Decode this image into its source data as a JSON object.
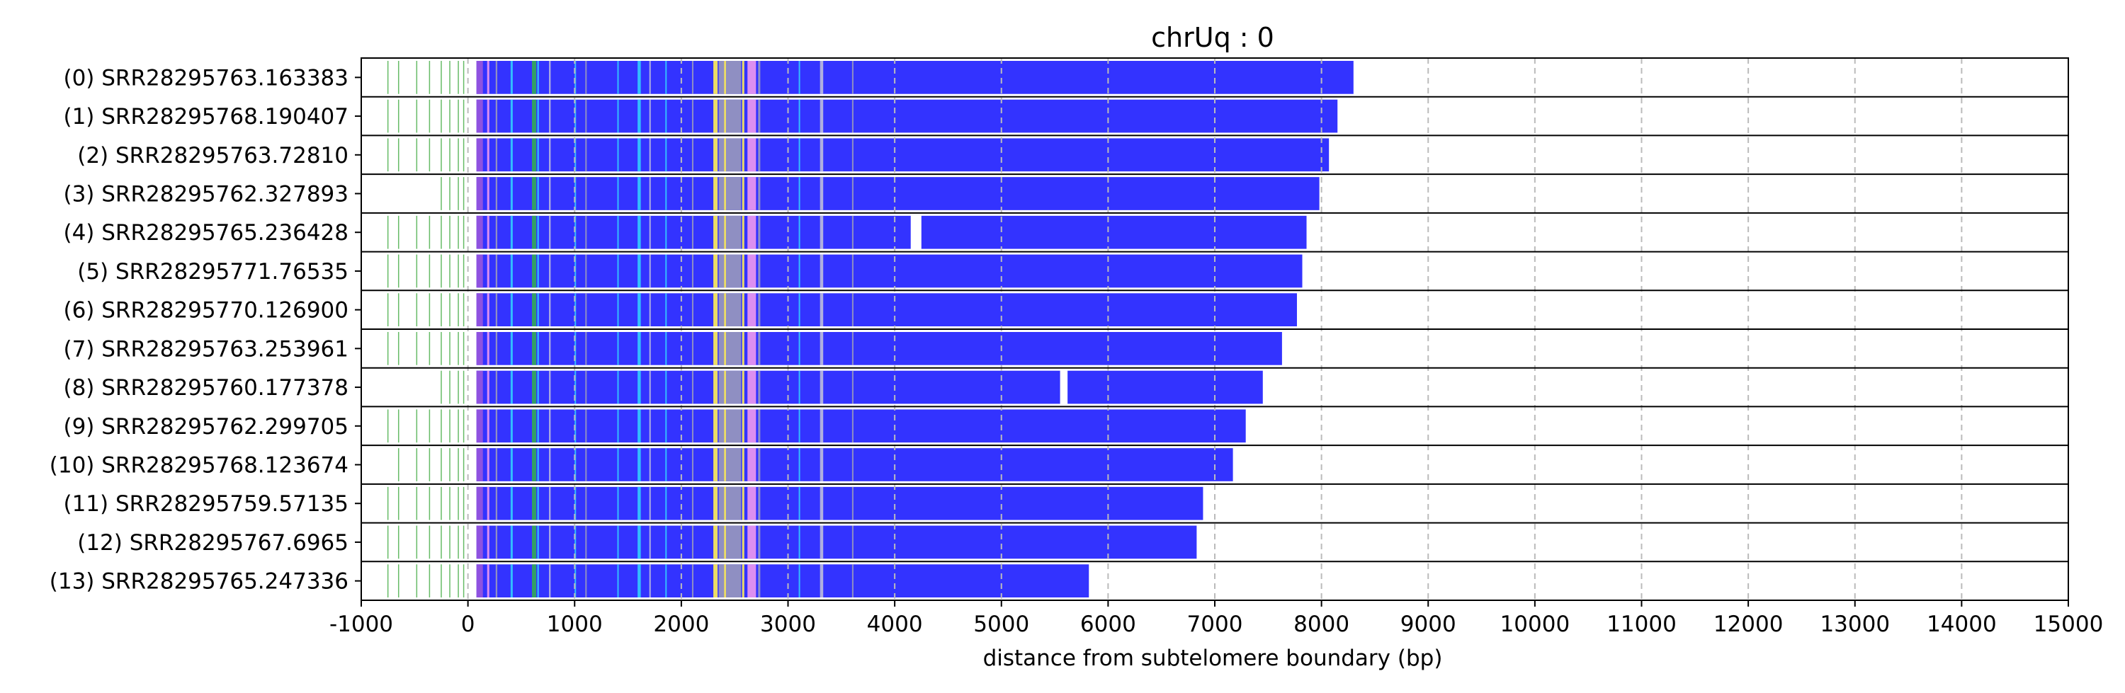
{
  "chart_data": {
    "type": "bar",
    "title": "chrUq : 0",
    "xlabel": "distance from subtelomere boundary (bp)",
    "ylabel": "",
    "xlim": [
      -1000,
      15000
    ],
    "xticks": [
      -1000,
      0,
      1000,
      2000,
      3000,
      4000,
      5000,
      6000,
      7000,
      8000,
      9000,
      10000,
      11000,
      12000,
      13000,
      14000,
      15000
    ],
    "xtick_labels": [
      "-1000",
      "0",
      "1000",
      "2000",
      "3000",
      "4000",
      "5000",
      "6000",
      "7000",
      "8000",
      "9000",
      "10000",
      "11000",
      "12000",
      "13000",
      "14000",
      "15000"
    ],
    "grid": "vertical dashed",
    "colors": {
      "telomere_repeat": "#3333ff",
      "variant_cyan": "#33ccff",
      "variant_yellow": "#ffee55",
      "variant_gray": "#9999bb",
      "variant_pink": "#ee99ee",
      "variant_purple": "#9955dd",
      "variant_green": "#33aa55",
      "variant_light": "#bbbbdd",
      "subtelomere_line": "#66bb66"
    },
    "reads": [
      {
        "label": "(0) SRR28295763.163383",
        "start": -1000,
        "end": 8300,
        "gaps": []
      },
      {
        "label": "(1) SRR28295768.190407",
        "start": -1000,
        "end": 8150,
        "gaps": []
      },
      {
        "label": "(2) SRR28295763.72810",
        "start": -1000,
        "end": 8070,
        "gaps": []
      },
      {
        "label": "(3) SRR28295762.327893",
        "start": -300,
        "end": 7980,
        "gaps": []
      },
      {
        "label": "(4) SRR28295765.236428",
        "start": -1000,
        "end": 7860,
        "gaps": [
          [
            4150,
            4250
          ]
        ]
      },
      {
        "label": "(5) SRR28295771.76535",
        "start": -1000,
        "end": 7820,
        "gaps": []
      },
      {
        "label": "(6) SRR28295770.126900",
        "start": -1000,
        "end": 7770,
        "gaps": []
      },
      {
        "label": "(7) SRR28295763.253961",
        "start": -1000,
        "end": 7630,
        "gaps": []
      },
      {
        "label": "(8) SRR28295760.177378",
        "start": -300,
        "end": 7450,
        "gaps": [
          [
            5550,
            5620
          ]
        ]
      },
      {
        "label": "(9) SRR28295762.299705",
        "start": -1000,
        "end": 7290,
        "gaps": []
      },
      {
        "label": "(10) SRR28295768.123674",
        "start": -700,
        "end": 7170,
        "gaps": []
      },
      {
        "label": "(11) SRR28295759.57135",
        "start": -1000,
        "end": 6890,
        "gaps": []
      },
      {
        "label": "(12) SRR28295767.6965",
        "start": -1000,
        "end": 6830,
        "gaps": []
      },
      {
        "label": "(13) SRR28295765.247336",
        "start": -1000,
        "end": 5820,
        "gaps": []
      }
    ]
  }
}
